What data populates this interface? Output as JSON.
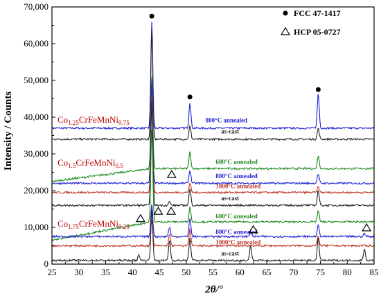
{
  "chart_data": {
    "type": "line",
    "xlabel": "2θ/°",
    "ylabel": "Intensity / Counts",
    "xlim": [
      25,
      85
    ],
    "ylim": [
      0,
      70000
    ],
    "x_ticks": [
      "25",
      "30",
      "35",
      "40",
      "45",
      "50",
      "55",
      "60",
      "65",
      "70",
      "75",
      "80",
      "85"
    ],
    "y_ticks": [
      "0",
      "10,000",
      "20,000",
      "30,000",
      "40,000",
      "50,000",
      "60,000",
      "70,000"
    ],
    "legend": {
      "position": "top-right",
      "fcc": "FCC 47-1417",
      "hcp": "HCP 05-0727"
    },
    "colors": {
      "blue": "#1f1fd6",
      "black": "#222222",
      "green": "#1f8a1f",
      "red": "#c0392b"
    },
    "compositions": [
      {
        "text": "Co",
        "sub1": "1.25",
        "mid": "CrFeMnNi",
        "sub2": "0.75",
        "y": 38500
      },
      {
        "text": "Co",
        "sub1": "1.5",
        "mid": "CrFeMnNi",
        "sub2": "0.5",
        "y": 26800
      },
      {
        "text": "Co",
        "sub1": "1.75",
        "mid": "CrFeMnNi",
        "sub2": "0.25",
        "y": 10200
      }
    ],
    "series": [
      {
        "name": "800°C annealed",
        "group": "Co1.25CrFeMnNi0.75",
        "color": "blue",
        "baseline": 37000,
        "peaks": [
          [
            43.6,
            29000
          ],
          [
            50.7,
            7000
          ],
          [
            74.6,
            9500
          ]
        ],
        "label_x": 53.6,
        "label_y": 38600
      },
      {
        "name": "as-cast",
        "group": "Co1.25CrFeMnNi0.75",
        "color": "black",
        "baseline": 34000,
        "peaks": [
          [
            43.6,
            30000
          ],
          [
            50.7,
            3500
          ],
          [
            74.6,
            3000
          ]
        ],
        "label_x": 56.5,
        "label_y": 35600
      },
      {
        "name": "600°C annealed",
        "group": "Co1.5CrFeMnNi0.5",
        "color": "green",
        "baseline": 26000,
        "slope": 3500,
        "peaks": [
          [
            43.6,
            25000
          ],
          [
            50.7,
            4500
          ],
          [
            74.6,
            3500
          ]
        ],
        "label_x": 55.5,
        "label_y": 27300
      },
      {
        "name": "800°C annealed",
        "group": "Co1.5CrFeMnNi0.5",
        "color": "blue",
        "baseline": 22000,
        "peaks": [
          [
            43.6,
            28000
          ],
          [
            50.7,
            3500
          ],
          [
            74.6,
            2500
          ]
        ],
        "label_x": 55.5,
        "label_y": 23400
      },
      {
        "name": "1000°C annealed",
        "group": "Co1.5CrFeMnNi0.5",
        "color": "red",
        "baseline": 19500,
        "peaks": [
          [
            43.6,
            26000
          ],
          [
            50.7,
            2500
          ],
          [
            74.6,
            1500
          ]
        ],
        "label_x": 55.5,
        "label_y": 20700
      },
      {
        "name": "as-cast",
        "group": "Co1.5CrFeMnNi0.5",
        "color": "black",
        "baseline": 16000,
        "peaks": [
          [
            43.6,
            28000
          ],
          [
            46.9,
            1000
          ],
          [
            50.7,
            4500
          ],
          [
            74.6,
            4000
          ]
        ],
        "label_x": 56.5,
        "label_y": 17400
      },
      {
        "name": "600°C annealed",
        "group": "Co1.75CrFeMnNi0.25",
        "color": "green",
        "baseline": 11500,
        "slope": 5000,
        "peaks": [
          [
            43.6,
            25000
          ],
          [
            50.7,
            4000
          ],
          [
            74.6,
            3000
          ]
        ],
        "label_x": 55.5,
        "label_y": 12500
      },
      {
        "name": "800°C annealed",
        "group": "Co1.75CrFeMnNi0.25",
        "color": "blue",
        "baseline": 7500,
        "peaks": [
          [
            43.6,
            9000
          ],
          [
            46.9,
            2500
          ],
          [
            50.7,
            5000
          ],
          [
            62.0,
            1200
          ],
          [
            74.6,
            3000
          ],
          [
            83.2,
            800
          ]
        ],
        "label_x": 55.5,
        "label_y": 8200
      },
      {
        "name": "1000°C annealed",
        "group": "Co1.75CrFeMnNi0.25",
        "color": "red",
        "baseline": 5000,
        "peaks": [
          [
            43.6,
            7000
          ],
          [
            46.9,
            3000
          ],
          [
            50.7,
            4500
          ],
          [
            74.6,
            2500
          ]
        ],
        "label_x": 55.5,
        "label_y": 5400
      },
      {
        "name": "as-cast",
        "group": "Co1.75CrFeMnNi0.25",
        "color": "black",
        "baseline": 1000,
        "peaks": [
          [
            41.2,
            1500
          ],
          [
            43.6,
            14000
          ],
          [
            46.9,
            5500
          ],
          [
            50.7,
            6000
          ],
          [
            62.0,
            4000
          ],
          [
            74.6,
            6000
          ],
          [
            83.2,
            3000
          ]
        ],
        "label_x": 56.5,
        "label_y": 2400
      }
    ],
    "markers": {
      "fcc": [
        [
          43.6,
          67500
        ],
        [
          50.7,
          45500
        ],
        [
          74.6,
          47500
        ]
      ],
      "hcp": [
        [
          41.5,
          12500
        ],
        [
          44.8,
          14500
        ],
        [
          47.2,
          14500
        ],
        [
          47.3,
          24500
        ],
        [
          62.5,
          9500
        ],
        [
          83.6,
          10000
        ]
      ]
    }
  }
}
